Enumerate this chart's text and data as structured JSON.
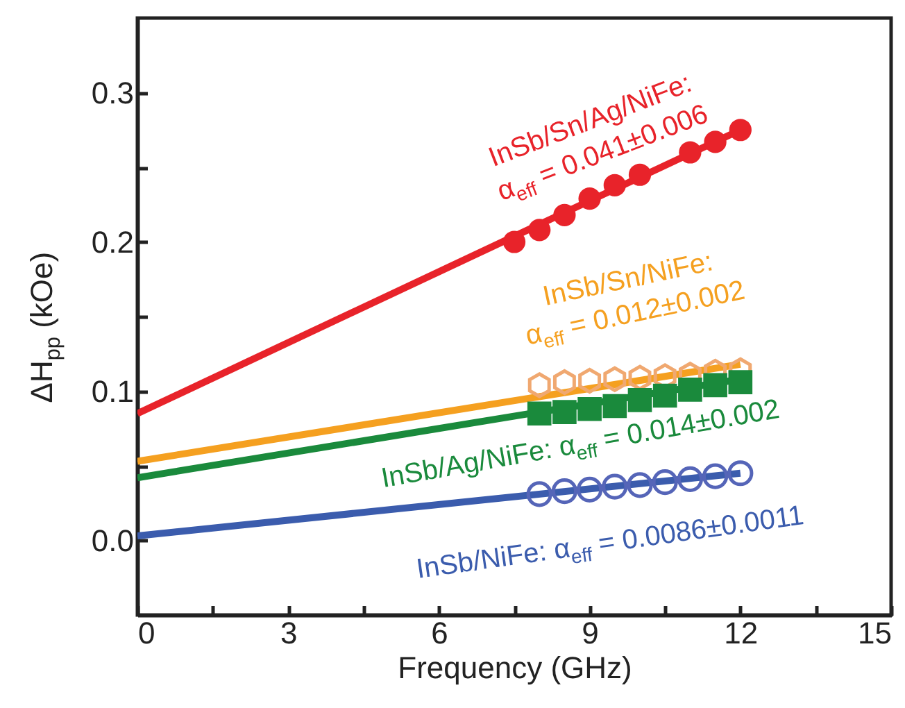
{
  "chart_data": {
    "type": "scatter",
    "xlabel": "Frequency (GHz)",
    "ylabel": "ΔH$_{pp}$ (kOe)",
    "xlim": [
      0,
      15
    ],
    "ylim": [
      -0.05,
      0.35
    ],
    "xticks": [
      0,
      {
        "value": 1.5,
        "label": null
      },
      3,
      {
        "value": 4.5,
        "label": null
      },
      6,
      {
        "value": 7.5,
        "label": null
      },
      9,
      {
        "value": 10.5,
        "label": null
      },
      12,
      {
        "value": 13.5,
        "label": null
      },
      15
    ],
    "yticks": [
      {
        "value": 0,
        "label": "0.0"
      },
      {
        "value": 0.05,
        "label": null
      },
      0.1,
      {
        "value": 0.15,
        "label": null
      },
      0.2,
      {
        "value": 0.25,
        "label": null
      },
      0.3
    ],
    "grid": false,
    "series": [
      {
        "marker": "circle",
        "color": "#e8232a",
        "x": [
          7.5,
          8,
          8.5,
          9,
          9.5,
          10,
          11,
          11.5,
          12
        ],
        "values": [
          0.2,
          0.208,
          0.218,
          0.229,
          0.238,
          0.245,
          0.26,
          0.267,
          0.275
        ]
      },
      {
        "color": "#f0a870",
        "x": [
          8,
          8.5,
          9,
          9.5,
          10,
          10.5,
          11,
          11.5,
          12
        ],
        "values": [
          0.104,
          0.106,
          0.107,
          0.108,
          0.109,
          0.11,
          0.111,
          0.113,
          0.114
        ]
      },
      {
        "marker": "square",
        "color": "#1a8a3c",
        "x": [
          8,
          8.5,
          9,
          9.5,
          10,
          10.5,
          11,
          11.5,
          12
        ],
        "values": [
          0.085,
          0.086,
          0.088,
          0.09,
          0.094,
          0.097,
          0.101,
          0.104,
          0.106
        ]
      },
      {
        "marker": "circle",
        "color": "#5565b8",
        "x": [
          8,
          8.5,
          9,
          9.5,
          10,
          10.5,
          11,
          11.5,
          12
        ],
        "values": [
          0.031,
          0.033,
          0.034,
          0.036,
          0.037,
          0.039,
          0.041,
          0.043,
          0.045
        ]
      },
      {
        "type": "line",
        "color": "#e8232a",
        "x": [
          0,
          12
        ],
        "values": [
          0.085,
          0.275
        ]
      },
      {
        "type": "line",
        "color": "#f5a020",
        "x": [
          0,
          12
        ],
        "values": [
          0.053,
          0.118
        ]
      },
      {
        "type": "line",
        "color": "#1a8a3c",
        "x": [
          0,
          12
        ],
        "values": [
          0.042,
          0.108
        ]
      },
      {
        "type": "line",
        "color": "#3b5cad",
        "x": [
          0,
          12
        ],
        "values": [
          0.003,
          0.045
        ]
      }
    ],
    "annotations": [
      "InSb/Sn/Ag/NiFe:\nα$_{eff}$ = 0.041±0.006",
      "InSb/Sn/NiFe:\nα$_{eff}$ = 0.012±0.002",
      "InSb/Ag/NiFe: α$_{eff}$ = 0.014±0.002",
      "InSb/NiFe: α$_{eff}$ = 0.0086±0.0011"
    ]
  }
}
